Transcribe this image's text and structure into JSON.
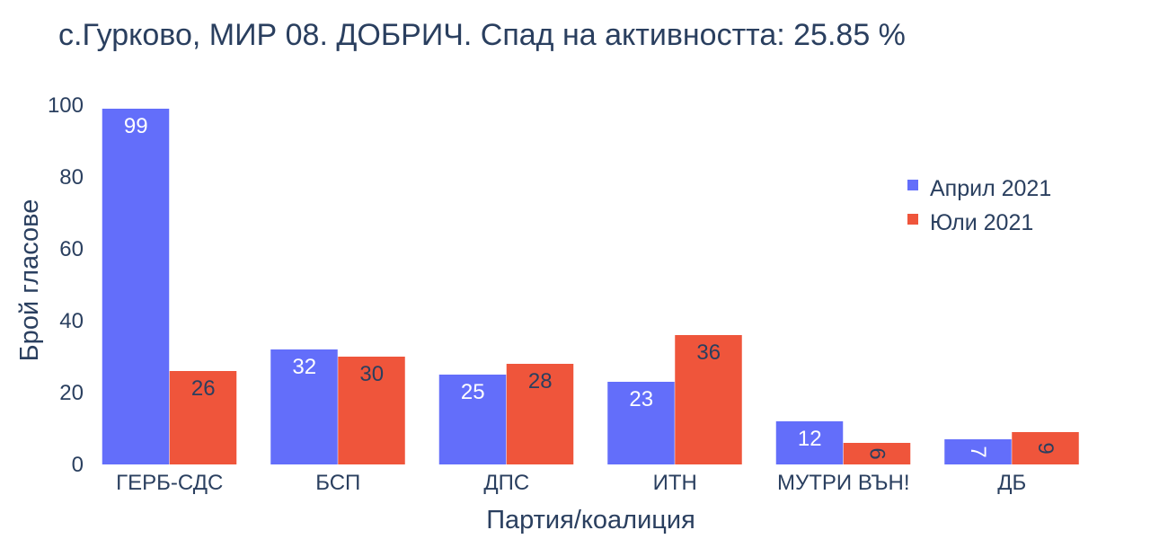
{
  "chart_data": {
    "type": "bar",
    "title": "с.Гурково, МИР 08. ДОБРИЧ. Спад на активността: 25.85 %",
    "xlabel": "Партия/коалиция",
    "ylabel": "Брой гласове",
    "categories": [
      "ГЕРБ-СДС",
      "БСП",
      "ДПС",
      "ИТН",
      "МУТРИ ВЪН!",
      "ДБ"
    ],
    "series": [
      {
        "name": "Април 2021",
        "color": "#636efa",
        "values": [
          99,
          32,
          25,
          23,
          12,
          7
        ]
      },
      {
        "name": "Юли 2021",
        "color": "#ef553b",
        "values": [
          26,
          30,
          28,
          36,
          6,
          9
        ]
      }
    ],
    "ylim": [
      0,
      100
    ],
    "yticks": [
      0,
      20,
      40,
      60,
      80,
      100
    ],
    "grid": false,
    "legend_position": "top-right",
    "text_color": "#2a3f5f"
  }
}
